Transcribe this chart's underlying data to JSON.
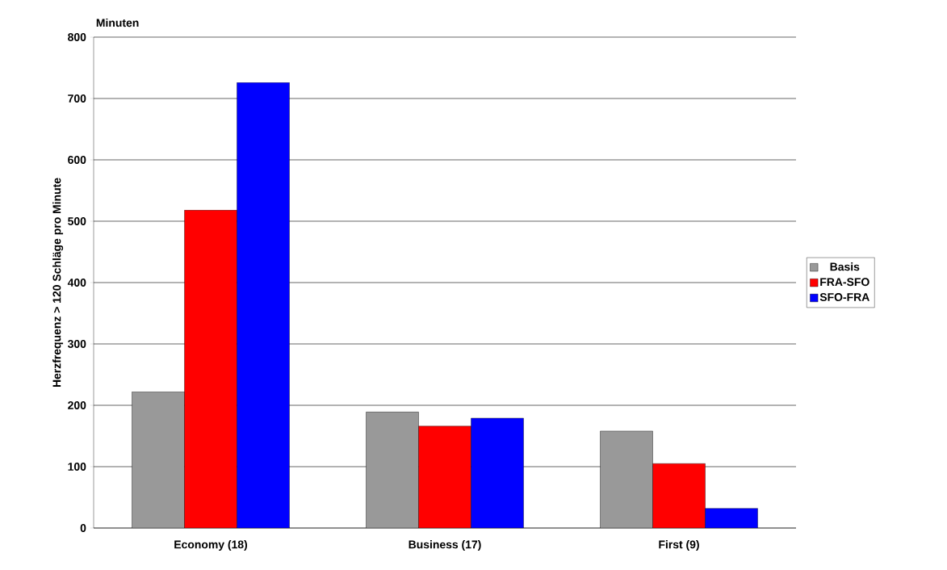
{
  "chart_data": {
    "type": "bar",
    "title": "Minuten",
    "ylabel": "Herzfrequenz > 120 Schläge pro Minute",
    "categories": [
      "Economy (18)",
      "Business (17)",
      "First (9)"
    ],
    "series": [
      {
        "name": "Basis",
        "color": "#999999",
        "values": [
          222,
          189,
          158
        ]
      },
      {
        "name": "FRA-SFO",
        "color": "#ff0000",
        "values": [
          518,
          166,
          105
        ]
      },
      {
        "name": "SFO-FRA",
        "color": "#0000ff",
        "values": [
          726,
          179,
          32
        ]
      }
    ],
    "ylim": [
      0,
      800
    ],
    "yticks": [
      0,
      100,
      200,
      300,
      400,
      500,
      600,
      700,
      800
    ],
    "grid": "y",
    "legend": "right"
  }
}
